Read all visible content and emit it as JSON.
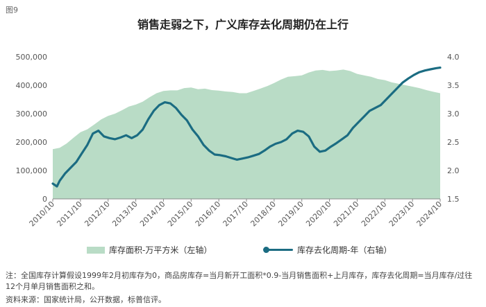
{
  "figure_label": "图9",
  "title": "销售走弱之下，广义库存去化周期仍在上行",
  "colors": {
    "area": "#b9dcc6",
    "line": "#1b6c82"
  },
  "legend": {
    "area_label": "库存面积-万平方米（左轴）",
    "line_label": "库存去化周期-年（右轴）"
  },
  "note": "注：全国库存计算假设1999年2月初库存为0，商品房库存=当月新开工面积*0.9-当月销售面积+上月库存，库存去化周期=当月库存/过往12个月单月销售面积之和。",
  "source": "资料来源：国家统计局，公开数据，标普信评。",
  "chart_data": {
    "type": "area+line",
    "x_tick_labels": [
      "2010/10",
      "2011/10",
      "2012/10",
      "2013/10",
      "2014/10",
      "2015/10",
      "2016/10",
      "2017/10",
      "2018/10",
      "2019/10",
      "2020/10",
      "2021/10",
      "2022/10",
      "2023/10",
      "2024/10"
    ],
    "y_left_ticks": [
      "0",
      "100,000",
      "200,000",
      "300,000",
      "400,000",
      "500,000"
    ],
    "y_left_range": [
      0,
      500000
    ],
    "y_right_ticks": [
      "1.5",
      "2.0",
      "2.5",
      "3.0",
      "3.5",
      "4.0"
    ],
    "y_right_range": [
      1.5,
      4.0
    ],
    "grid": false,
    "legend_position": "bottom",
    "series": [
      {
        "name": "库存面积-万平方米（左轴）",
        "axis": "left",
        "type": "area",
        "x": [
          2010.75,
          2011.0,
          2011.25,
          2011.5,
          2011.75,
          2012.0,
          2012.25,
          2012.5,
          2012.75,
          2013.0,
          2013.25,
          2013.5,
          2013.75,
          2014.0,
          2014.25,
          2014.5,
          2014.75,
          2015.0,
          2015.25,
          2015.5,
          2015.75,
          2016.0,
          2016.25,
          2016.5,
          2016.75,
          2017.0,
          2017.25,
          2017.5,
          2017.75,
          2018.0,
          2018.25,
          2018.5,
          2018.75,
          2019.0,
          2019.25,
          2019.5,
          2019.75,
          2020.0,
          2020.25,
          2020.5,
          2020.75,
          2021.0,
          2021.25,
          2021.5,
          2021.75,
          2022.0,
          2022.25,
          2022.5,
          2022.75,
          2023.0,
          2023.25,
          2023.5,
          2023.75,
          2024.0,
          2024.25,
          2024.5,
          2024.75
        ],
        "values": [
          175000,
          180000,
          195000,
          215000,
          235000,
          245000,
          262000,
          280000,
          292000,
          300000,
          312000,
          325000,
          332000,
          342000,
          358000,
          372000,
          380000,
          382000,
          382000,
          390000,
          392000,
          386000,
          388000,
          383000,
          381000,
          378000,
          376000,
          372000,
          372000,
          380000,
          388000,
          397000,
          408000,
          420000,
          430000,
          432000,
          435000,
          445000,
          452000,
          454000,
          450000,
          452000,
          455000,
          450000,
          440000,
          435000,
          430000,
          422000,
          418000,
          410000,
          405000,
          400000,
          395000,
          390000,
          383000,
          377000,
          372000
        ]
      },
      {
        "name": "库存去化周期-年（右轴）",
        "axis": "right",
        "type": "line",
        "x": [
          2010.75,
          2010.9,
          2011.0,
          2011.2,
          2011.4,
          2011.6,
          2011.8,
          2012.0,
          2012.2,
          2012.4,
          2012.6,
          2012.8,
          2013.0,
          2013.2,
          2013.4,
          2013.6,
          2013.8,
          2014.0,
          2014.2,
          2014.4,
          2014.6,
          2014.8,
          2015.0,
          2015.2,
          2015.4,
          2015.6,
          2015.8,
          2016.0,
          2016.2,
          2016.4,
          2016.6,
          2016.8,
          2017.0,
          2017.2,
          2017.4,
          2017.6,
          2017.8,
          2018.0,
          2018.2,
          2018.4,
          2018.6,
          2018.8,
          2019.0,
          2019.2,
          2019.4,
          2019.6,
          2019.8,
          2020.0,
          2020.2,
          2020.4,
          2020.6,
          2020.8,
          2021.0,
          2021.2,
          2021.4,
          2021.6,
          2021.8,
          2022.0,
          2022.2,
          2022.4,
          2022.6,
          2022.8,
          2023.0,
          2023.2,
          2023.4,
          2023.6,
          2023.8,
          2024.0,
          2024.2,
          2024.4,
          2024.6,
          2024.75
        ],
        "values": [
          1.77,
          1.72,
          1.82,
          1.95,
          2.05,
          2.15,
          2.3,
          2.45,
          2.65,
          2.7,
          2.6,
          2.57,
          2.55,
          2.58,
          2.62,
          2.57,
          2.62,
          2.72,
          2.9,
          3.05,
          3.15,
          3.2,
          3.18,
          3.1,
          2.98,
          2.88,
          2.72,
          2.6,
          2.45,
          2.35,
          2.28,
          2.27,
          2.25,
          2.22,
          2.19,
          2.21,
          2.23,
          2.26,
          2.29,
          2.35,
          2.42,
          2.47,
          2.5,
          2.55,
          2.65,
          2.7,
          2.68,
          2.6,
          2.42,
          2.33,
          2.35,
          2.42,
          2.48,
          2.55,
          2.62,
          2.75,
          2.85,
          2.95,
          3.05,
          3.1,
          3.15,
          3.25,
          3.35,
          3.45,
          3.55,
          3.62,
          3.68,
          3.73,
          3.76,
          3.78,
          3.8,
          3.81
        ]
      }
    ]
  }
}
